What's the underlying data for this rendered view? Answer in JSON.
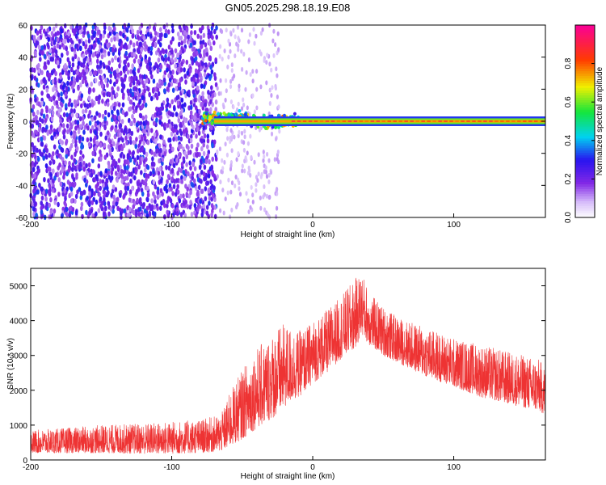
{
  "title": "GN05.2025.298.18.19.E08",
  "chart_data": [
    {
      "type": "heatmap",
      "xlabel": "Height of straight line (km)",
      "ylabel": "Frequency (Hz)",
      "xlim": [
        -200,
        165
      ],
      "ylim": [
        -60,
        60
      ],
      "xticks": [
        -200,
        -100,
        0,
        100
      ],
      "yticks": [
        -60,
        -40,
        -20,
        0,
        20,
        40,
        60
      ],
      "colorbar": {
        "label": "Normalized spectral amplitude",
        "range": [
          0.0,
          1.0
        ],
        "ticks": [
          0.0,
          0.2,
          0.4,
          0.6,
          0.8
        ],
        "tick_labels": [
          "0.0",
          "0.2",
          "0.4",
          "0.6",
          "0.8"
        ],
        "colormap": "rainbow (white-violet-blue-cyan-green-yellow-red-magenta)"
      },
      "features": {
        "noise_region_x": [
          -200,
          -68
        ],
        "noise_amplitude": [
          0.1,
          0.35
        ],
        "signal_start_x": -78,
        "signal_frequency_hz": 0,
        "signal_bandwidth_hz": [
          -3,
          3
        ],
        "signal_peak_amplitude": 0.9,
        "turbulent_region_x": [
          -78,
          -10
        ]
      }
    },
    {
      "type": "line",
      "xlabel": "Height of straight line (km)",
      "ylabel": "SNR (10 * v/v)",
      "xlim": [
        -200,
        165
      ],
      "ylim": [
        0,
        5500
      ],
      "xticks": [
        -200,
        -100,
        0,
        100
      ],
      "yticks": [
        0,
        1000,
        2000,
        3000,
        4000,
        5000
      ],
      "series": [
        {
          "color": "#ee3333",
          "envelope": {
            "x": [
              -200,
              -180,
              -150,
              -120,
              -100,
              -80,
              -65,
              -58,
              -50,
              -40,
              -32,
              -25,
              -20,
              -15,
              -10,
              -5,
              0,
              10,
              20,
              30,
              35,
              40,
              50,
              60,
              80,
              100,
              120,
              140,
              160,
              165
            ],
            "low": [
              200,
              200,
              200,
              180,
              180,
              200,
              250,
              400,
              600,
              900,
              1100,
              1300,
              1500,
              1700,
              1800,
              2000,
              2200,
              2500,
              2900,
              3200,
              3600,
              3300,
              3000,
              2800,
              2400,
              2100,
              1800,
              1600,
              1400,
              1300
            ],
            "high": [
              850,
              900,
              1000,
              1050,
              1100,
              1150,
              1300,
              2000,
              2600,
              3200,
              3500,
              3800,
              3900,
              3800,
              3700,
              3800,
              4000,
              4300,
              4700,
              5200,
              5400,
              4800,
              4400,
              4100,
              3800,
              3500,
              3300,
              3100,
              2900,
              2700
            ]
          }
        }
      ]
    }
  ]
}
